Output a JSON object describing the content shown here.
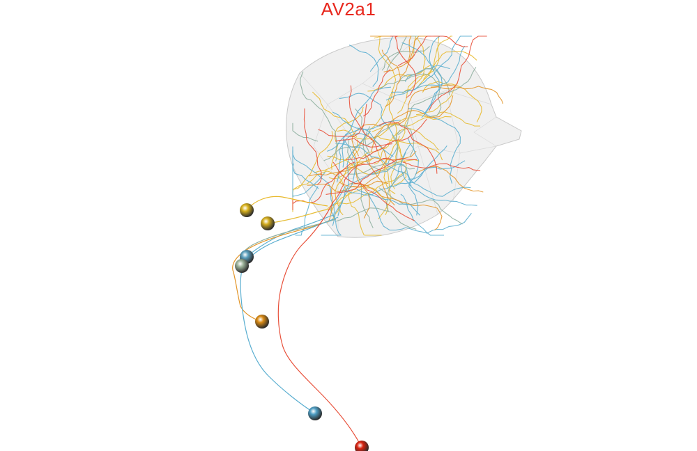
{
  "title": "AV2a1",
  "colors": {
    "title": "#e8281e",
    "neuropil_fill": "#dcdcdc",
    "neuropil_stroke": "#bdbdbd",
    "background": "#ffffff"
  },
  "neurons": [
    {
      "name": "neuron-yellow-1",
      "color": "#e8b92c",
      "soma_color": "#d9b21c"
    },
    {
      "name": "neuron-yellow-2",
      "color": "#e6be3a",
      "soma_color": "#d4ad1e"
    },
    {
      "name": "neuron-blue-1",
      "color": "#5fb0cf",
      "soma_color": "#5a9fbd"
    },
    {
      "name": "neuron-sage-1",
      "color": "#8fb0a0",
      "soma_color": "#9cb39a"
    },
    {
      "name": "neuron-orange-1",
      "color": "#e3962a",
      "soma_color": "#d98a14"
    },
    {
      "name": "neuron-blue-2",
      "color": "#5aaed0",
      "soma_color": "#4e9ec4"
    },
    {
      "name": "neuron-red-1",
      "color": "#e8503a",
      "soma_color": "#d9220f"
    }
  ]
}
